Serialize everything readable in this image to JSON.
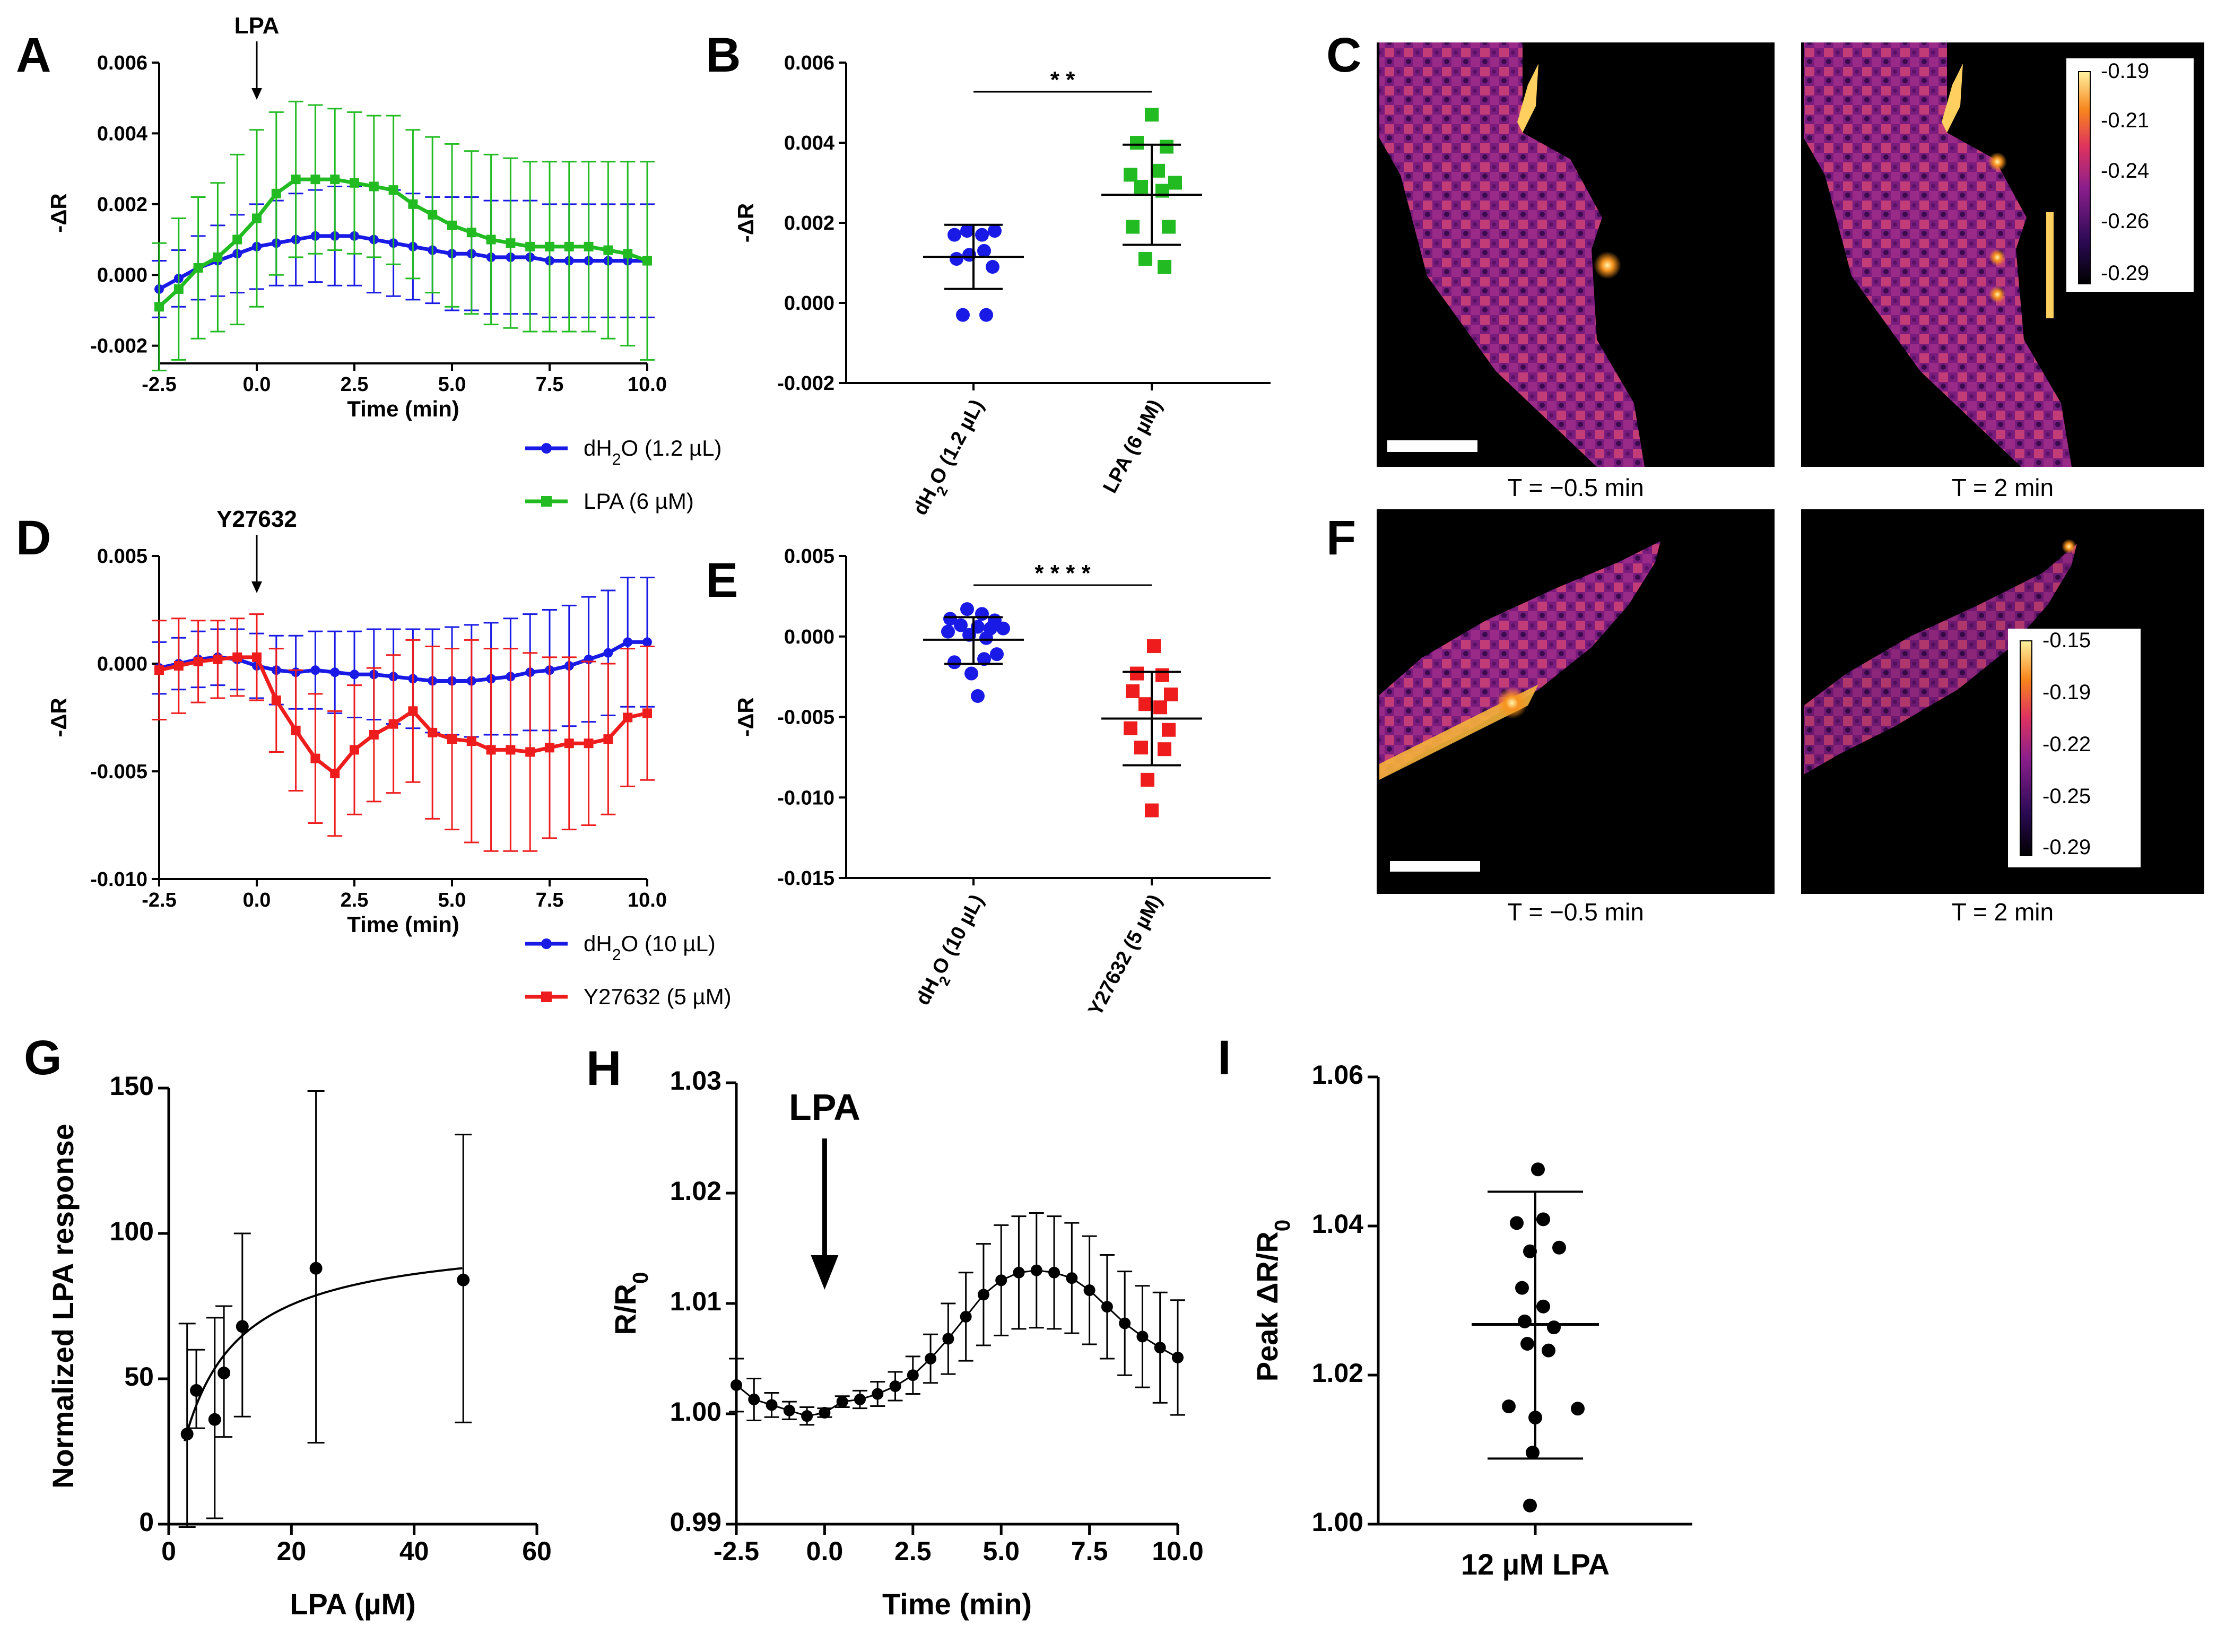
{
  "panels": {
    "A": "A",
    "B": "B",
    "C": "C",
    "D": "D",
    "E": "E",
    "F": "F",
    "G": "G",
    "H": "H",
    "I": "I"
  },
  "colors": {
    "blue": "#1a1ae6",
    "green": "#22bb22",
    "red": "#ee1c1c",
    "black": "#000000",
    "imgbg": "#000000"
  },
  "chart_data": [
    {
      "id": "A",
      "type": "line",
      "xlabel": "Time (min)",
      "ylabel": "-ΔR",
      "xlim": [
        -2.5,
        10
      ],
      "ylim": [
        -0.0025,
        0.006
      ],
      "xticks": [
        -2.5,
        0,
        2.5,
        5,
        7.5,
        10
      ],
      "xtick_labels": [
        "-2.5",
        "0.0",
        "2.5",
        "5.0",
        "7.5",
        "10.0"
      ],
      "yticks": [
        -0.002,
        0,
        0.002,
        0.004,
        0.006
      ],
      "ytick_labels": [
        "-0.002",
        "0.000",
        "0.002",
        "0.004",
        "0.006"
      ],
      "annotation": {
        "text": "LPA",
        "x": 0
      },
      "x": [
        -2.5,
        -2,
        -1.5,
        -1,
        -0.5,
        0,
        0.5,
        1,
        1.5,
        2,
        2.5,
        3,
        3.5,
        4,
        4.5,
        5,
        5.5,
        6,
        6.5,
        7,
        7.5,
        8,
        8.5,
        9,
        9.5,
        10
      ],
      "series": [
        {
          "name": "dH2O (1.2 µL)",
          "legend_main": "dH",
          "legend_sub": "2",
          "legend_rest": "O (1.2 µL)",
          "color": "#1a1ae6",
          "marker": "circle",
          "values": [
            -0.0004,
            -0.0001,
            0.0002,
            0.0004,
            0.0006,
            0.0008,
            0.0009,
            0.001,
            0.0011,
            0.0011,
            0.0011,
            0.001,
            0.0009,
            0.0008,
            0.0007,
            0.0006,
            0.0006,
            0.0005,
            0.0005,
            0.0005,
            0.0004,
            0.0004,
            0.0004,
            0.0004,
            0.0004,
            0.0004
          ],
          "err": [
            0.0008,
            0.0008,
            0.0009,
            0.001,
            0.0011,
            0.0012,
            0.0012,
            0.0013,
            0.0013,
            0.0014,
            0.0014,
            0.0015,
            0.0015,
            0.0015,
            0.0015,
            0.0016,
            0.0016,
            0.0016,
            0.0016,
            0.0016,
            0.0016,
            0.0016,
            0.0016,
            0.0016,
            0.0016,
            0.0016
          ]
        },
        {
          "name": "LPA (6 µM)",
          "legend_main": "LPA (6 µM)",
          "legend_sub": "",
          "legend_rest": "",
          "color": "#22bb22",
          "marker": "square",
          "values": [
            -0.0009,
            -0.0004,
            0.0002,
            0.0005,
            0.001,
            0.0016,
            0.0023,
            0.0027,
            0.0027,
            0.0027,
            0.0026,
            0.0025,
            0.0024,
            0.002,
            0.0017,
            0.0014,
            0.0012,
            0.001,
            0.0009,
            0.0008,
            0.0008,
            0.0008,
            0.0008,
            0.0007,
            0.0006,
            0.0004
          ],
          "err": [
            0.0018,
            0.002,
            0.002,
            0.0021,
            0.0024,
            0.0025,
            0.0023,
            0.0022,
            0.0021,
            0.002,
            0.002,
            0.002,
            0.0021,
            0.0021,
            0.0022,
            0.0023,
            0.0023,
            0.0024,
            0.0024,
            0.0024,
            0.0024,
            0.0024,
            0.0024,
            0.0025,
            0.0026,
            0.0028
          ]
        }
      ]
    },
    {
      "id": "B",
      "type": "scatter",
      "ylabel": "-ΔR",
      "ylim": [
        -0.002,
        0.006
      ],
      "yticks": [
        -0.002,
        0,
        0.002,
        0.004,
        0.006
      ],
      "ytick_labels": [
        "-0.002",
        "0.000",
        "0.002",
        "0.004",
        "0.006"
      ],
      "significance": "* *",
      "groups": [
        {
          "label_main": "dH",
          "label_sub": "2",
          "label_rest": "O (1.2 µL)",
          "color": "#1a1ae6",
          "marker": "circle",
          "points": [
            [
              -0.09,
              0.0017
            ],
            [
              -0.03,
              0.0018
            ],
            [
              0.04,
              0.0017
            ],
            [
              0.1,
              0.0018
            ],
            [
              -0.08,
              0.0011
            ],
            [
              -0.02,
              0.0012
            ],
            [
              0.05,
              0.0013
            ],
            [
              0.09,
              0.0009
            ],
            [
              -0.05,
              -0.0003
            ],
            [
              0.06,
              -0.0003
            ]
          ],
          "mean": 0.00115,
          "sd_low": 0.00035,
          "sd_high": 0.00195
        },
        {
          "label_main": "LPA (6 µM)",
          "label_sub": "",
          "label_rest": "",
          "color": "#22bb22",
          "marker": "square",
          "points": [
            [
              0.0,
              0.0047
            ],
            [
              -0.07,
              0.004
            ],
            [
              0.07,
              0.0039
            ],
            [
              -0.1,
              0.0032
            ],
            [
              0.03,
              0.0033
            ],
            [
              0.11,
              0.003
            ],
            [
              -0.05,
              0.0029
            ],
            [
              0.05,
              0.0028
            ],
            [
              -0.09,
              0.0019
            ],
            [
              0.08,
              0.0019
            ],
            [
              -0.03,
              0.0011
            ],
            [
              0.06,
              0.0009
            ]
          ],
          "mean": 0.0027,
          "sd_low": 0.00145,
          "sd_high": 0.00395
        }
      ]
    },
    {
      "id": "D",
      "type": "line",
      "xlabel": "Time (min)",
      "ylabel": "-ΔR",
      "xlim": [
        -2.5,
        10
      ],
      "ylim": [
        -0.01,
        0.005
      ],
      "xticks": [
        -2.5,
        0,
        2.5,
        5,
        7.5,
        10
      ],
      "xtick_labels": [
        "-2.5",
        "0.0",
        "2.5",
        "5.0",
        "7.5",
        "10.0"
      ],
      "yticks": [
        -0.01,
        -0.005,
        0,
        0.005
      ],
      "ytick_labels": [
        "-0.010",
        "-0.005",
        "0.000",
        "0.005"
      ],
      "annotation": {
        "text": "Y27632",
        "x": 0
      },
      "x": [
        -2.5,
        -2,
        -1.5,
        -1,
        -0.5,
        0,
        0.5,
        1,
        1.5,
        2,
        2.5,
        3,
        3.5,
        4,
        4.5,
        5,
        5.5,
        6,
        6.5,
        7,
        7.5,
        8,
        8.5,
        9,
        9.5,
        10
      ],
      "series": [
        {
          "name": "dH2O (10 µL)",
          "legend_main": "dH",
          "legend_sub": "2",
          "legend_rest": "O (10 µL)",
          "color": "#1a1ae6",
          "marker": "circle",
          "values": [
            -0.0002,
            0.0,
            0.0002,
            0.0003,
            0.0002,
            -0.0001,
            -0.0003,
            -0.0004,
            -0.0003,
            -0.0004,
            -0.0005,
            -0.0005,
            -0.0006,
            -0.0007,
            -0.0008,
            -0.0008,
            -0.0008,
            -0.0007,
            -0.0006,
            -0.0004,
            -0.0003,
            -0.0001,
            0.0002,
            0.0005,
            0.001,
            0.001
          ],
          "err": [
            0.0012,
            0.0012,
            0.0013,
            0.0013,
            0.0014,
            0.0015,
            0.0016,
            0.0017,
            0.0018,
            0.0019,
            0.002,
            0.0021,
            0.0022,
            0.0023,
            0.0024,
            0.0025,
            0.0026,
            0.0026,
            0.0027,
            0.0027,
            0.0028,
            0.0028,
            0.0029,
            0.0029,
            0.003,
            0.003
          ]
        },
        {
          "name": "Y27632 (5 µM)",
          "legend_main": "Y27632 (5 µM)",
          "legend_sub": "",
          "legend_rest": "",
          "color": "#ee1c1c",
          "marker": "square",
          "values": [
            -0.0003,
            -0.0001,
            0.0001,
            0.0002,
            0.0003,
            0.0003,
            -0.0017,
            -0.0031,
            -0.0044,
            -0.0051,
            -0.004,
            -0.0033,
            -0.0028,
            -0.0022,
            -0.0032,
            -0.0035,
            -0.0036,
            -0.004,
            -0.004,
            -0.0041,
            -0.0039,
            -0.0037,
            -0.0037,
            -0.0035,
            -0.0025,
            -0.0023
          ],
          "err": [
            0.0023,
            0.0022,
            0.0019,
            0.0018,
            0.0018,
            0.002,
            0.0024,
            0.0028,
            0.003,
            0.0029,
            0.003,
            0.0031,
            0.0032,
            0.0033,
            0.004,
            0.0042,
            0.0047,
            0.0047,
            0.0047,
            0.0046,
            0.0042,
            0.004,
            0.0038,
            0.0035,
            0.0032,
            0.0031
          ]
        }
      ]
    },
    {
      "id": "E",
      "type": "scatter",
      "ylabel": "-ΔR",
      "ylim": [
        -0.015,
        0.005
      ],
      "yticks": [
        -0.015,
        -0.01,
        -0.005,
        0,
        0.005
      ],
      "ytick_labels": [
        "-0.015",
        "-0.010",
        "-0.005",
        "0.000",
        "0.005"
      ],
      "significance": "* * * *",
      "groups": [
        {
          "label_main": "dH",
          "label_sub": "2",
          "label_rest": "O (10 µL)",
          "color": "#1a1ae6",
          "marker": "circle",
          "points": [
            [
              -0.03,
              0.0017
            ],
            [
              0.04,
              0.0014
            ],
            [
              -0.11,
              0.0011
            ],
            [
              0.1,
              0.001
            ],
            [
              -0.06,
              0.0007
            ],
            [
              0.02,
              0.0006
            ],
            [
              0.08,
              0.0005
            ],
            [
              0.14,
              0.0005
            ],
            [
              -0.12,
              0.0003
            ],
            [
              -0.02,
              0.0001
            ],
            [
              0.06,
              -0.0001
            ],
            [
              -0.09,
              -0.0016
            ],
            [
              0.05,
              -0.0014
            ],
            [
              0.11,
              -0.0011
            ],
            [
              -0.01,
              -0.0023
            ],
            [
              0.02,
              -0.0037
            ]
          ],
          "mean": -0.0002,
          "sd_low": -0.0017,
          "sd_high": 0.0012
        },
        {
          "label_main": "Y27632 (5 µM)",
          "label_sub": "",
          "label_rest": "",
          "color": "#ee1c1c",
          "marker": "square",
          "points": [
            [
              0.01,
              -0.0006
            ],
            [
              -0.07,
              -0.0023
            ],
            [
              0.05,
              -0.0024
            ],
            [
              -0.09,
              -0.0034
            ],
            [
              0.09,
              -0.0036
            ],
            [
              -0.03,
              -0.0042
            ],
            [
              0.04,
              -0.0044
            ],
            [
              -0.1,
              -0.0057
            ],
            [
              0.08,
              -0.0058
            ],
            [
              -0.05,
              -0.0069
            ],
            [
              0.06,
              -0.007
            ],
            [
              -0.02,
              -0.0089
            ],
            [
              0.0,
              -0.0108
            ]
          ],
          "mean": -0.0051,
          "sd_low": -0.008,
          "sd_high": -0.0022
        }
      ]
    },
    {
      "id": "G",
      "type": "scatter",
      "xlabel": "LPA (µM)",
      "ylabel": "Normalized LPA response",
      "xlim": [
        0,
        60
      ],
      "ylim": [
        0,
        150
      ],
      "xticks": [
        0,
        20,
        40,
        60
      ],
      "xtick_labels": [
        "0",
        "20",
        "40",
        "60"
      ],
      "yticks": [
        0,
        50,
        100,
        150
      ],
      "ytick_labels": [
        "0",
        "50",
        "100",
        "150"
      ],
      "points": [
        {
          "x": 3,
          "y": 31,
          "lo": -1,
          "hi": 69
        },
        {
          "x": 4.5,
          "y": 46,
          "lo": 33,
          "hi": 60
        },
        {
          "x": 7.5,
          "y": 36,
          "lo": 2,
          "hi": 71
        },
        {
          "x": 9,
          "y": 52,
          "lo": 30,
          "hi": 75
        },
        {
          "x": 12,
          "y": 68,
          "lo": 37,
          "hi": 100
        },
        {
          "x": 24,
          "y": 88,
          "lo": 28,
          "hi": 149
        },
        {
          "x": 48,
          "y": 84,
          "lo": 35,
          "hi": 134
        }
      ],
      "fit": {
        "type": "hill",
        "vmax": 100,
        "k": 6.5,
        "x0": 2.6
      }
    },
    {
      "id": "H",
      "type": "line",
      "xlabel": "Time (min)",
      "ylabel_main": "R/R",
      "ylabel_sub": "0",
      "xlim": [
        -2.5,
        10
      ],
      "ylim": [
        0.99,
        1.03
      ],
      "xticks": [
        -2.5,
        0,
        2.5,
        5,
        7.5,
        10
      ],
      "xtick_labels": [
        "-2.5",
        "0.0",
        "2.5",
        "5.0",
        "7.5",
        "10.0"
      ],
      "yticks": [
        0.99,
        1.0,
        1.01,
        1.02,
        1.03
      ],
      "ytick_labels": [
        "0.99",
        "1.00",
        "1.01",
        "1.02",
        "1.03"
      ],
      "annotation": {
        "text": "LPA",
        "x": 0
      },
      "x": [
        -2.5,
        -2,
        -1.5,
        -1,
        -0.5,
        0,
        0.5,
        1,
        1.5,
        2,
        2.5,
        3,
        3.5,
        4,
        4.5,
        5,
        5.5,
        6,
        6.5,
        7,
        7.5,
        8,
        8.5,
        9,
        9.5,
        10
      ],
      "values": [
        1.0026,
        1.0013,
        1.0008,
        1.0003,
        0.9998,
        1.0001,
        1.0011,
        1.0013,
        1.0018,
        1.0025,
        1.0035,
        1.005,
        1.0068,
        1.0088,
        1.0108,
        1.0121,
        1.0128,
        1.013,
        1.0128,
        1.0123,
        1.0112,
        1.0097,
        1.0082,
        1.007,
        1.006,
        1.0051
      ],
      "err": [
        0.0024,
        0.0019,
        0.0011,
        0.0008,
        0.0008,
        0.0004,
        0.0005,
        0.0008,
        0.0011,
        0.0013,
        0.0017,
        0.0022,
        0.0032,
        0.004,
        0.0046,
        0.005,
        0.0051,
        0.0052,
        0.0051,
        0.005,
        0.0049,
        0.0047,
        0.0047,
        0.0046,
        0.005,
        0.0052
      ]
    },
    {
      "id": "I",
      "type": "scatter",
      "ylabel_main": "Peak ΔR/R",
      "ylabel_sub": "0",
      "xlabel": "12  µM LPA",
      "ylim": [
        1.0,
        1.06
      ],
      "yticks": [
        1.0,
        1.02,
        1.04,
        1.06
      ],
      "ytick_labels": [
        "1.00",
        "1.02",
        "1.04",
        "1.06"
      ],
      "points": [
        [
          0.01,
          1.0476
        ],
        [
          -0.07,
          1.0404
        ],
        [
          0.03,
          1.0409
        ],
        [
          -0.02,
          1.0366
        ],
        [
          0.09,
          1.0371
        ],
        [
          -0.05,
          1.0317
        ],
        [
          0.03,
          1.0292
        ],
        [
          -0.04,
          1.0272
        ],
        [
          0.07,
          1.0264
        ],
        [
          -0.03,
          1.0242
        ],
        [
          0.05,
          1.0233
        ],
        [
          -0.1,
          1.0158
        ],
        [
          0.16,
          1.0155
        ],
        [
          0.0,
          1.0143
        ],
        [
          -0.01,
          1.0096
        ],
        [
          -0.02,
          1.0025
        ]
      ],
      "mean": 1.0268,
      "sd_low": 1.0088,
      "sd_high": 1.0446
    }
  ],
  "images": {
    "C": {
      "left_caption": "T = −0.5 min",
      "right_caption": "T = 2 min",
      "colorbar": [
        "-0.19",
        "-0.21",
        "-0.24",
        "-0.26",
        "-0.29"
      ]
    },
    "F": {
      "left_caption": "T = −0.5 min",
      "right_caption": "T = 2 min",
      "colorbar": [
        "-0.15",
        "-0.19",
        "-0.22",
        "-0.25",
        "-0.29"
      ]
    }
  }
}
